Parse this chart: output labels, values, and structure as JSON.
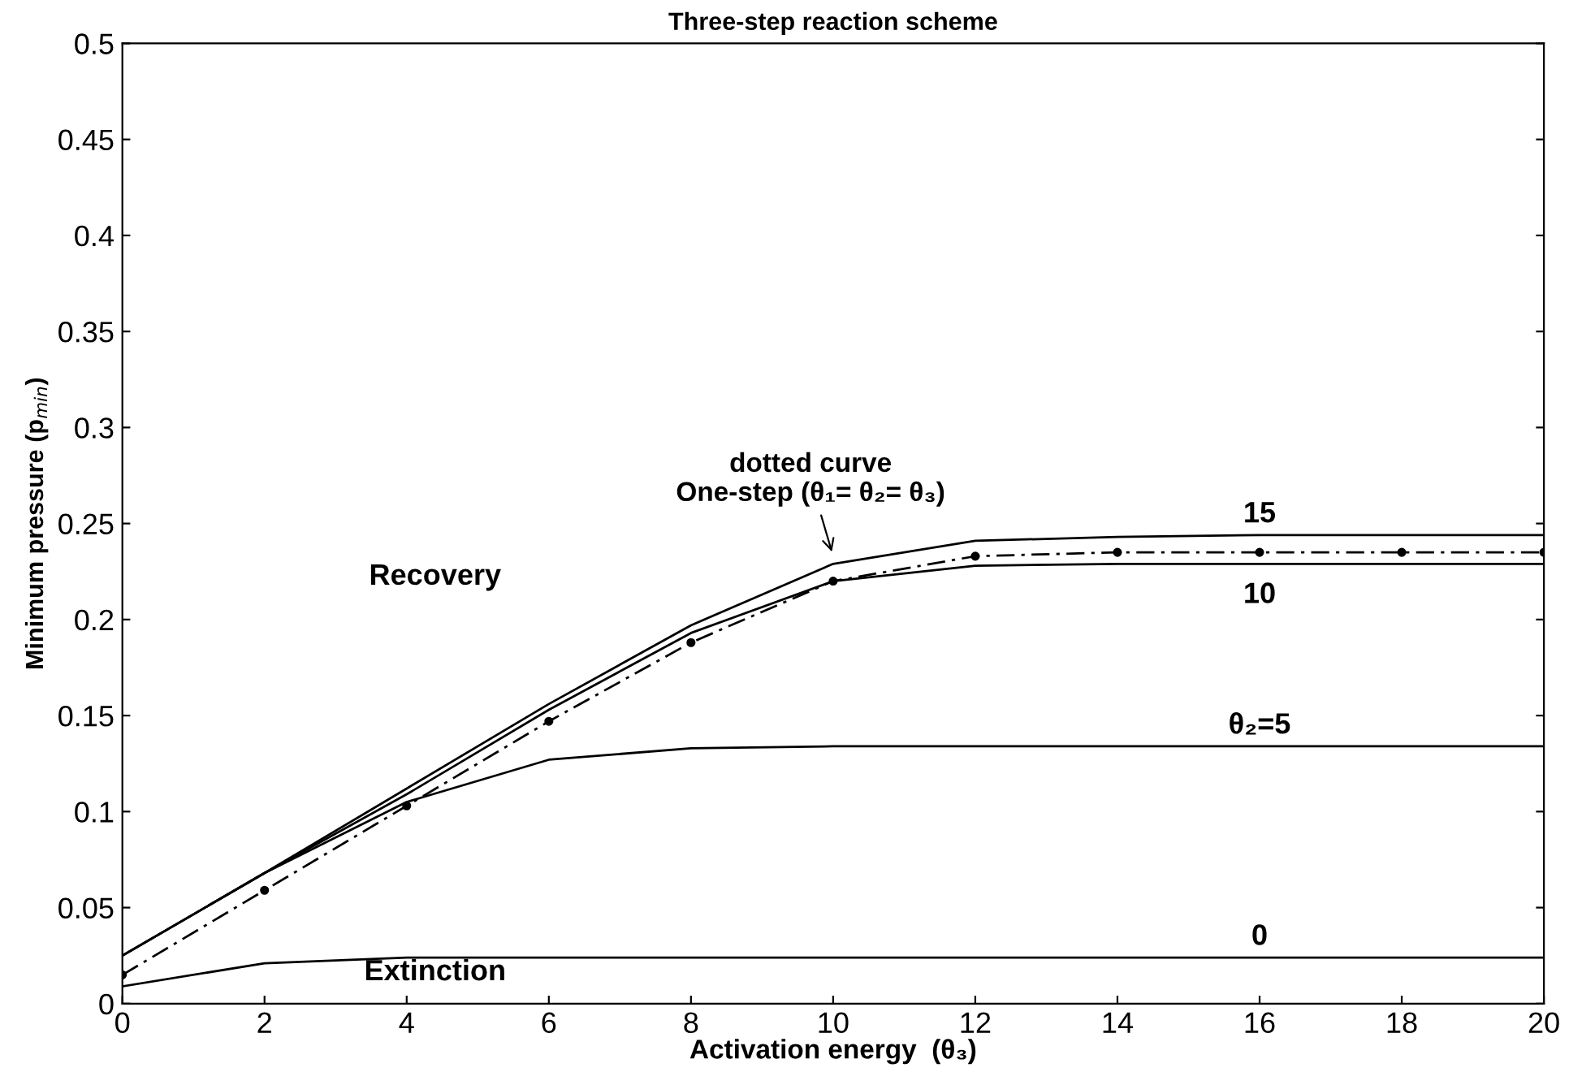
{
  "chart_data": {
    "type": "line",
    "title": "Three-step reaction scheme",
    "xlabel": "Activation energy  (θ₃)",
    "ylabel": "Minimum pressure (p$_{min}$)",
    "x": [
      0,
      2,
      4,
      6,
      8,
      10,
      12,
      14,
      16,
      18,
      20
    ],
    "series": [
      {
        "name": "15",
        "color": "#000000",
        "values": [
          0.025,
          0.068,
          0.112,
          0.156,
          0.197,
          0.229,
          0.241,
          0.243,
          0.244,
          0.244,
          0.244
        ]
      },
      {
        "name": "10",
        "color": "#000000",
        "values": [
          0.025,
          0.068,
          0.109,
          0.153,
          0.193,
          0.22,
          0.228,
          0.229,
          0.229,
          0.229,
          0.229
        ]
      },
      {
        "name": "θ₂=5",
        "color": "#000000",
        "values": [
          0.025,
          0.068,
          0.105,
          0.127,
          0.133,
          0.134,
          0.134,
          0.134,
          0.134,
          0.134,
          0.134
        ]
      },
      {
        "name": "0",
        "color": "#000000",
        "values": [
          0.009,
          0.021,
          0.024,
          0.024,
          0.024,
          0.024,
          0.024,
          0.024,
          0.024,
          0.024,
          0.024
        ]
      },
      {
        "color": "#000000",
        "marker": "circle",
        "line_style": "dashed",
        "values": [
          0.015,
          0.059,
          0.103,
          0.147,
          0.188,
          0.22,
          0.233,
          0.235,
          0.235,
          0.235,
          0.235
        ]
      }
    ],
    "xlim": [
      0,
      20
    ],
    "ylim": [
      0,
      0.5
    ],
    "xticks": [
      0,
      2,
      4,
      6,
      8,
      10,
      12,
      14,
      16,
      18,
      20
    ],
    "yticks": [
      0,
      0.05,
      0.1,
      0.15,
      0.2,
      0.25,
      0.3,
      0.35,
      0.4,
      0.45,
      0.5
    ],
    "grid": false,
    "legend": false,
    "annotations": [
      {
        "text": "dotted curve\nOne-step (θ₁= θ₂= θ₃)",
        "x": 10,
        "y": 0.233
      },
      "Recovery",
      "Extinction"
    ]
  }
}
